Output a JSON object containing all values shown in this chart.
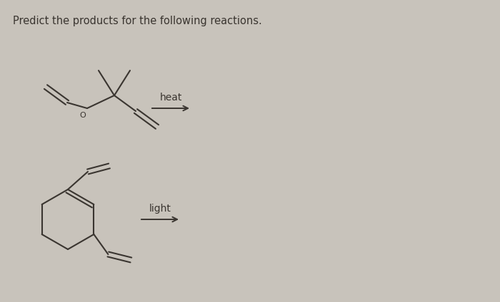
{
  "background_color": "#c8c3bb",
  "title_text": "Predict the products for the following reactions.",
  "title_fontsize": 10.5,
  "line_color": "#3a3530",
  "line_width": 1.5,
  "text_color": "#3a3530",
  "heat_label": "heat",
  "light_label": "light"
}
